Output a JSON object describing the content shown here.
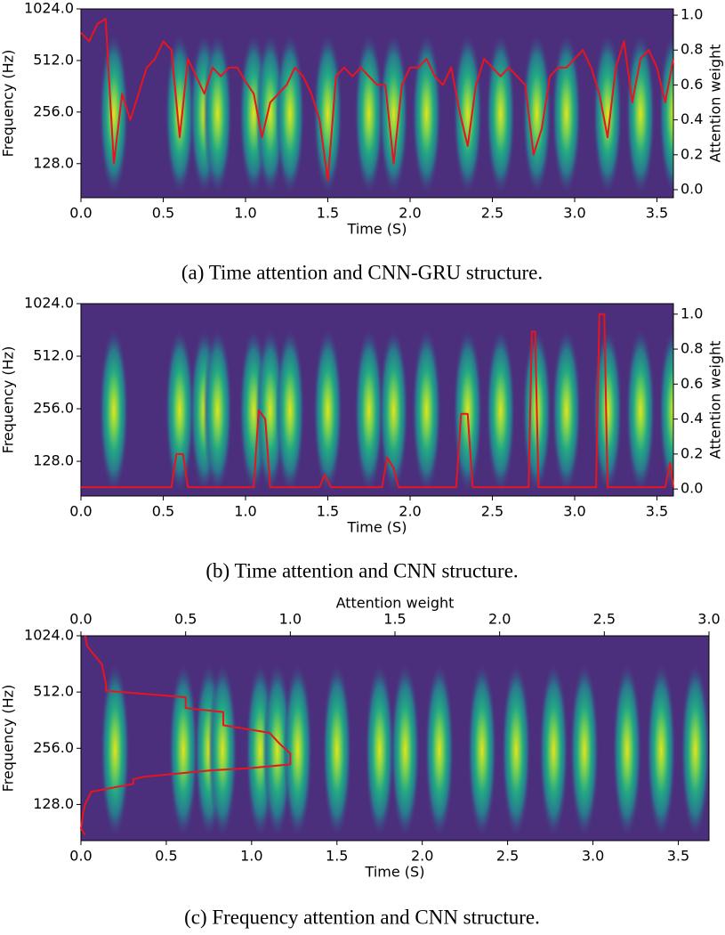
{
  "chart_data": [
    {
      "type": "line",
      "caption": "(a) Time attention and CNN-GRU structure.",
      "xlabel": "Time (S)",
      "ylabel": "Frequency (Hz)",
      "y2label": "Attention weight",
      "yscale": "log",
      "xlim": [
        0,
        3.6
      ],
      "xticks": [
        {
          "value": 0,
          "label": "0.0"
        },
        {
          "value": 0.5,
          "label": "0.5"
        },
        {
          "value": 1,
          "label": "1.0"
        },
        {
          "value": 1.5,
          "label": "1.5"
        },
        {
          "value": 2,
          "label": "2.0"
        },
        {
          "value": 2.5,
          "label": "2.5"
        },
        {
          "value": 3,
          "label": "3.0"
        },
        {
          "value": 3.5,
          "label": "3.5"
        }
      ],
      "ylim": [
        81,
        1024
      ],
      "yticks": [
        {
          "value": 128,
          "label": "128.0"
        },
        {
          "value": 256,
          "label": "256.0"
        },
        {
          "value": 512,
          "label": "512.0"
        },
        {
          "value": 1024,
          "label": "1024.0"
        }
      ],
      "y2lim": [
        -0.046,
        1.036
      ],
      "y2ticks": [
        {
          "value": 0,
          "label": "0.0"
        },
        {
          "value": 0.2,
          "label": "0.2"
        },
        {
          "value": 0.4,
          "label": "0.4"
        },
        {
          "value": 0.6,
          "label": "0.6"
        },
        {
          "value": 0.8,
          "label": "0.8"
        },
        {
          "value": 1,
          "label": "1.0"
        }
      ],
      "peaks": [
        0.2,
        0.6,
        0.75,
        0.83,
        1.05,
        1.15,
        1.27,
        1.5,
        1.75,
        1.9,
        2.1,
        2.35,
        2.55,
        2.77,
        2.95,
        3.2,
        3.4,
        3.6
      ],
      "series": [
        {
          "color": "#e8141e",
          "axis": "y2",
          "x": [
            0,
            0.05,
            0.1,
            0.15,
            0.2,
            0.25,
            0.3,
            0.35,
            0.4,
            0.45,
            0.5,
            0.55,
            0.6,
            0.65,
            0.7,
            0.75,
            0.8,
            0.85,
            0.9,
            0.95,
            1,
            1.05,
            1.1,
            1.15,
            1.2,
            1.25,
            1.3,
            1.35,
            1.4,
            1.45,
            1.5,
            1.55,
            1.6,
            1.65,
            1.7,
            1.75,
            1.8,
            1.85,
            1.9,
            1.95,
            2,
            2.05,
            2.1,
            2.15,
            2.2,
            2.25,
            2.3,
            2.35,
            2.4,
            2.45,
            2.5,
            2.55,
            2.6,
            2.65,
            2.7,
            2.75,
            2.8,
            2.85,
            2.9,
            2.95,
            3,
            3.05,
            3.1,
            3.15,
            3.2,
            3.25,
            3.3,
            3.35,
            3.4,
            3.45,
            3.5,
            3.55,
            3.6
          ],
          "values": [
            0.9,
            0.85,
            0.95,
            0.98,
            0.15,
            0.55,
            0.4,
            0.55,
            0.7,
            0.75,
            0.85,
            0.8,
            0.3,
            0.75,
            0.65,
            0.55,
            0.7,
            0.65,
            0.7,
            0.7,
            0.62,
            0.55,
            0.3,
            0.5,
            0.55,
            0.6,
            0.7,
            0.65,
            0.55,
            0.4,
            0.05,
            0.65,
            0.7,
            0.65,
            0.7,
            0.65,
            0.6,
            0.6,
            0.15,
            0.6,
            0.7,
            0.7,
            0.75,
            0.65,
            0.6,
            0.7,
            0.45,
            0.25,
            0.6,
            0.75,
            0.7,
            0.65,
            0.7,
            0.65,
            0.6,
            0.2,
            0.35,
            0.65,
            0.7,
            0.7,
            0.75,
            0.8,
            0.7,
            0.55,
            0.3,
            0.7,
            0.85,
            0.5,
            0.75,
            0.8,
            0.7,
            0.5,
            0.75
          ]
        }
      ]
    },
    {
      "type": "line",
      "caption": "(b) Time attention and CNN structure.",
      "xlabel": "Time (S)",
      "ylabel": "Frequency (Hz)",
      "y2label": "Attention weight",
      "yscale": "log",
      "xlim": [
        0,
        3.6
      ],
      "xticks": [
        {
          "value": 0,
          "label": "0.0"
        },
        {
          "value": 0.5,
          "label": "0.5"
        },
        {
          "value": 1,
          "label": "1.0"
        },
        {
          "value": 1.5,
          "label": "1.5"
        },
        {
          "value": 2,
          "label": "2.0"
        },
        {
          "value": 2.5,
          "label": "2.5"
        },
        {
          "value": 3,
          "label": "3.0"
        },
        {
          "value": 3.5,
          "label": "3.5"
        }
      ],
      "ylim": [
        81,
        1024
      ],
      "yticks": [
        {
          "value": 128,
          "label": "128.0"
        },
        {
          "value": 256,
          "label": "256.0"
        },
        {
          "value": 512,
          "label": "512.0"
        },
        {
          "value": 1024,
          "label": "1024.0"
        }
      ],
      "y2lim": [
        -0.04,
        1.06
      ],
      "y2ticks": [
        {
          "value": 0,
          "label": "0.0"
        },
        {
          "value": 0.2,
          "label": "0.2"
        },
        {
          "value": 0.4,
          "label": "0.4"
        },
        {
          "value": 0.6,
          "label": "0.6"
        },
        {
          "value": 0.8,
          "label": "0.8"
        },
        {
          "value": 1,
          "label": "1.0"
        }
      ],
      "peaks": [
        0.2,
        0.6,
        0.75,
        0.83,
        1.05,
        1.15,
        1.27,
        1.5,
        1.75,
        1.9,
        2.1,
        2.35,
        2.55,
        2.77,
        2.95,
        3.2,
        3.4,
        3.6
      ],
      "series": [
        {
          "color": "#e8141e",
          "axis": "y2",
          "x": [
            0,
            0.55,
            0.58,
            0.62,
            0.65,
            1.05,
            1.08,
            1.12,
            1.15,
            1.45,
            1.48,
            1.52,
            1.83,
            1.86,
            1.9,
            1.93,
            2.28,
            2.31,
            2.35,
            2.38,
            2.72,
            2.74,
            2.76,
            2.78,
            3.13,
            3.15,
            3.18,
            3.2,
            3.55,
            3.58,
            3.6
          ],
          "values": [
            0.01,
            0.01,
            0.2,
            0.2,
            0.01,
            0.01,
            0.45,
            0.4,
            0.01,
            0.01,
            0.08,
            0.01,
            0.01,
            0.18,
            0.12,
            0.01,
            0.01,
            0.43,
            0.43,
            0.01,
            0.01,
            0.9,
            0.9,
            0.01,
            0.01,
            1.0,
            1.0,
            0.01,
            0.01,
            0.15,
            0.01
          ]
        }
      ]
    },
    {
      "type": "line",
      "caption": "(c) Frequency attention and CNN structure.",
      "xlabel": "Time (S)",
      "ylabel": "Frequency (Hz)",
      "x2label": "Attention weight",
      "yscale": "log",
      "xlim": [
        0,
        3.68
      ],
      "xticks": [
        {
          "value": 0,
          "label": "0.0"
        },
        {
          "value": 0.5,
          "label": "0.5"
        },
        {
          "value": 1,
          "label": "1.0"
        },
        {
          "value": 1.5,
          "label": "1.5"
        },
        {
          "value": 2,
          "label": "2.0"
        },
        {
          "value": 2.5,
          "label": "2.5"
        },
        {
          "value": 3,
          "label": "3.0"
        },
        {
          "value": 3.5,
          "label": "3.5"
        }
      ],
      "x2lim": [
        0,
        3
      ],
      "x2ticks": [
        {
          "value": 0,
          "label": "0.0"
        },
        {
          "value": 0.5,
          "label": "0.5"
        },
        {
          "value": 1,
          "label": "1.0"
        },
        {
          "value": 1.5,
          "label": "1.5"
        },
        {
          "value": 2,
          "label": "2.0"
        },
        {
          "value": 2.5,
          "label": "2.5"
        },
        {
          "value": 3,
          "label": "3.0"
        }
      ],
      "ylim": [
        82,
        1024
      ],
      "yticks": [
        {
          "value": 128,
          "label": "128.0"
        },
        {
          "value": 256,
          "label": "256.0"
        },
        {
          "value": 512,
          "label": "512.0"
        },
        {
          "value": 1024,
          "label": "1024.0"
        }
      ],
      "peaks": [
        0.2,
        0.6,
        0.75,
        0.83,
        1.05,
        1.15,
        1.27,
        1.5,
        1.75,
        1.9,
        2.1,
        2.35,
        2.55,
        2.77,
        2.95,
        3.2,
        3.4,
        3.6
      ],
      "series": [
        {
          "color": "#e8141e",
          "axis": "x2",
          "x": [
            0.02,
            0.03,
            0.1,
            0.12,
            0.12,
            0.5,
            0.5,
            0.68,
            0.68,
            0.9,
            0.95,
            1.0,
            1.0,
            0.8,
            0.62,
            0.3,
            0.25,
            0.25,
            0.05,
            0.02,
            0.01,
            0.0,
            0.02
          ],
          "values": [
            1024,
            900,
            720,
            560,
            520,
            480,
            420,
            400,
            340,
            310,
            270,
            240,
            210,
            200,
            195,
            180,
            175,
            165,
            150,
            128,
            115,
            95,
            88
          ]
        }
      ]
    }
  ]
}
